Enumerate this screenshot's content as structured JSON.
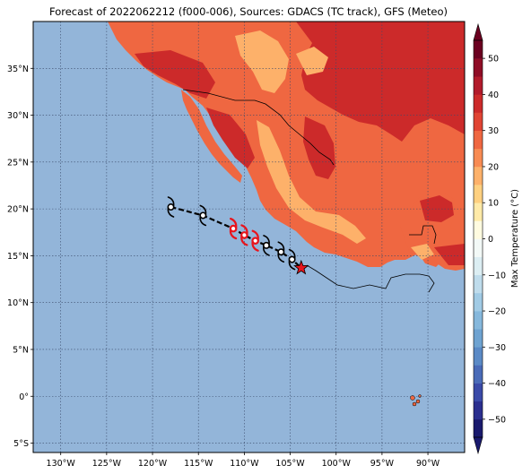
{
  "title": "Forecast of 2022062212 (f000-006), Sources: GDACS (TC track), GFS (Meteo)",
  "map": {
    "lon_range": [
      -133,
      -86
    ],
    "lat_range": [
      -6,
      40
    ],
    "lon_ticks": [
      "130°W",
      "125°W",
      "120°W",
      "115°W",
      "110°W",
      "105°W",
      "100°W",
      "95°W",
      "90°W"
    ],
    "lon_tick_values": [
      -130,
      -125,
      -120,
      -115,
      -110,
      -105,
      -100,
      -95,
      -90
    ],
    "lat_ticks": [
      "35°N",
      "30°N",
      "25°N",
      "20°N",
      "15°N",
      "10°N",
      "5°N",
      "0°",
      "5°S"
    ],
    "lat_tick_values": [
      35,
      30,
      25,
      20,
      15,
      10,
      5,
      0,
      -5
    ],
    "ocean_color": "#93b5d9",
    "gridlines": "dotted"
  },
  "track": {
    "points": [
      {
        "lon": -118.0,
        "lat": 20.2,
        "intensity": "tropical-storm",
        "color": "#000000"
      },
      {
        "lon": -114.5,
        "lat": 19.3,
        "intensity": "tropical-storm",
        "color": "#000000"
      },
      {
        "lon": -111.2,
        "lat": 17.9,
        "intensity": "hurricane",
        "color": "#e8141c"
      },
      {
        "lon": -110.0,
        "lat": 17.2,
        "intensity": "hurricane",
        "color": "#e8141c"
      },
      {
        "lon": -108.8,
        "lat": 16.6,
        "intensity": "hurricane",
        "color": "#e8141c"
      },
      {
        "lon": -107.6,
        "lat": 16.1,
        "intensity": "tropical-storm",
        "color": "#000000"
      },
      {
        "lon": -106.0,
        "lat": 15.4,
        "intensity": "tropical-storm",
        "color": "#000000"
      },
      {
        "lon": -104.8,
        "lat": 14.6,
        "intensity": "tropical-storm",
        "color": "#000000"
      }
    ],
    "current_position": {
      "lon": -103.8,
      "lat": 13.7,
      "marker": "star",
      "color": "#e8141c"
    }
  },
  "colorbar": {
    "label": "Max Temperature (°C)",
    "ticks": [
      "50",
      "40",
      "30",
      "20",
      "10",
      "0",
      "−10",
      "−20",
      "−30",
      "−40",
      "−50"
    ],
    "levels": [
      -55,
      -50,
      -45,
      -40,
      -35,
      -30,
      -25,
      -20,
      -15,
      -10,
      -5,
      0,
      5,
      10,
      15,
      20,
      25,
      30,
      35,
      40,
      45,
      50,
      55
    ],
    "colors": [
      "#1a1a6e",
      "#2b2f8f",
      "#3a4aa8",
      "#4a6bb8",
      "#5b8ac6",
      "#6fa3d1",
      "#86b8dc",
      "#a1cbe5",
      "#bfdcec",
      "#dceef3",
      "#f3f9f7",
      "#fffbe0",
      "#ffeaa8",
      "#fed080",
      "#fdb16a",
      "#f88b53",
      "#ef6741",
      "#e04433",
      "#cc2a2a",
      "#b21b2b",
      "#8f0d26",
      "#6b0020"
    ]
  },
  "legend_icons": {
    "storm": "tropical-storm-symbol-icon",
    "hurricane": "hurricane-symbol-icon",
    "star": "star-marker-icon"
  }
}
